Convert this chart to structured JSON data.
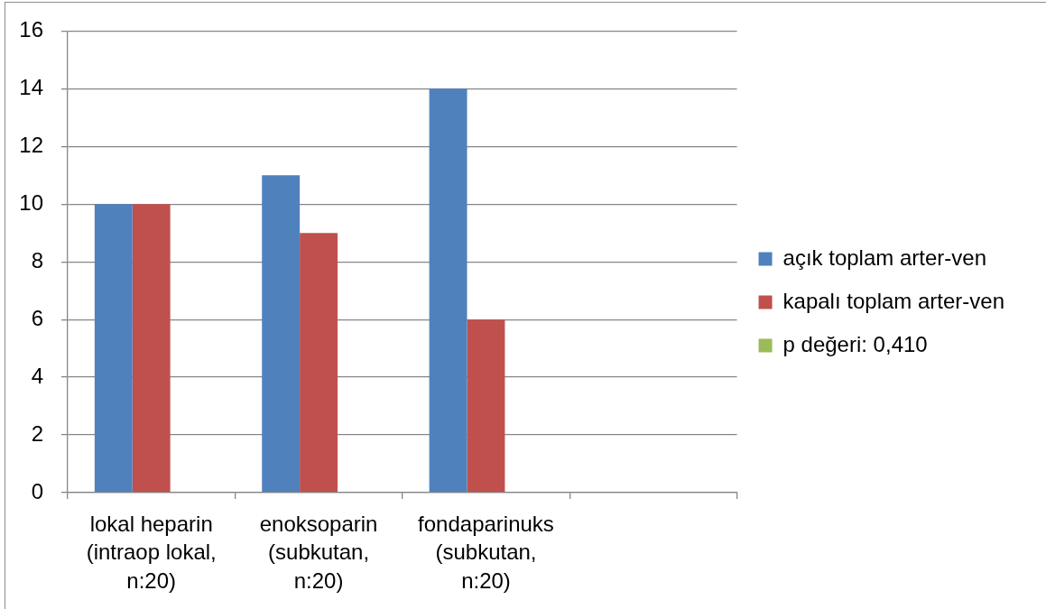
{
  "chart_data": {
    "type": "bar",
    "categories": [
      "lokal heparin (intraop lokal, n:20)",
      "enoksoparin (subkutan, n:20)",
      "fondaparinuks (subkutan, n:20)",
      null
    ],
    "series": [
      {
        "name": "açık toplam arter-ven",
        "color": "#4f81bd",
        "values": [
          10,
          11,
          14,
          null
        ]
      },
      {
        "name": "kapalı toplam arter-ven",
        "color": "#c0504d",
        "values": [
          10,
          9,
          6,
          null
        ]
      },
      {
        "name": "p değeri: 0,410",
        "color": "#9bbb59",
        "values": [
          null,
          null,
          null,
          null
        ]
      }
    ],
    "ylim": [
      0,
      16
    ],
    "yticks": [
      0,
      2,
      4,
      6,
      8,
      10,
      12,
      14,
      16
    ],
    "grid": "y",
    "legend": "right"
  }
}
